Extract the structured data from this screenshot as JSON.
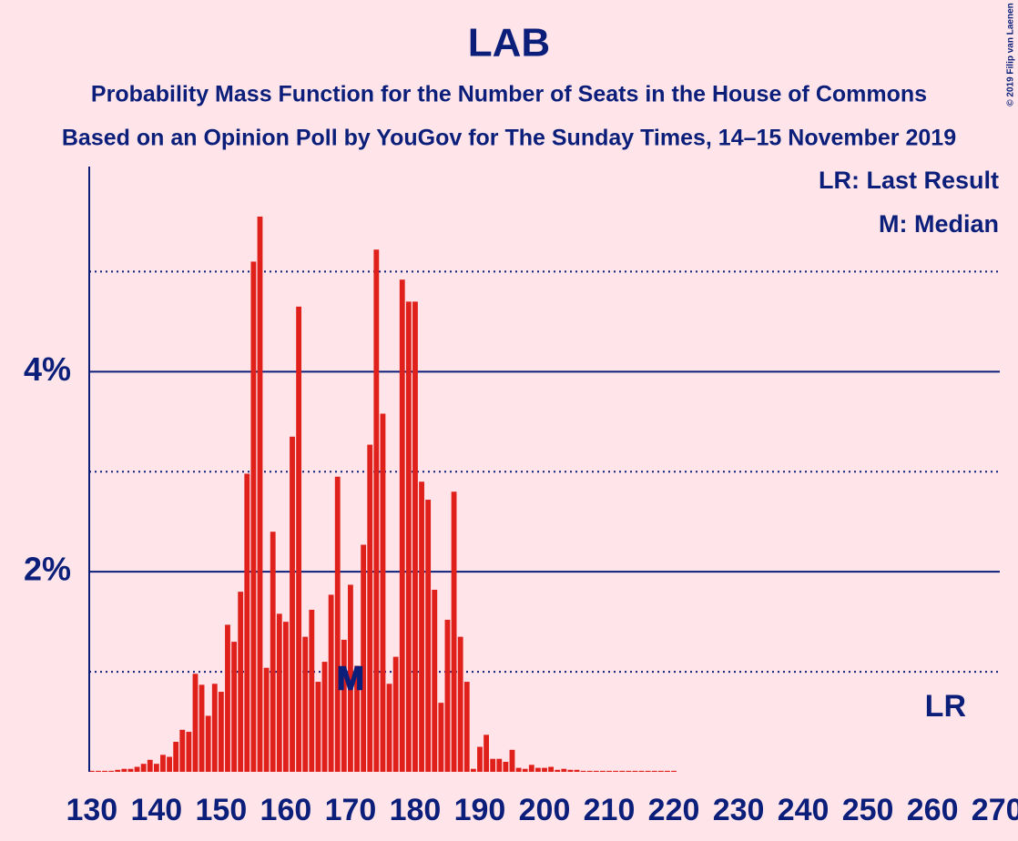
{
  "chart_data": {
    "type": "bar",
    "title": "LAB",
    "subtitle": "Probability Mass Function for the Number of Seats in the House of Commons",
    "subtitle2": "Based on an Opinion Poll by YouGov for The Sunday Times, 14–15 November 2019",
    "copyright": "© 2019 Filip van Laenen",
    "legend": [
      "LR: Last Result",
      "M: Median"
    ],
    "median": 170,
    "median_label": "M",
    "last_result": 262,
    "last_result_label": "LR",
    "color": "#e0201b",
    "x": [
      130,
      131,
      132,
      133,
      134,
      135,
      136,
      137,
      138,
      139,
      140,
      141,
      142,
      143,
      144,
      145,
      146,
      147,
      148,
      149,
      150,
      151,
      152,
      153,
      154,
      155,
      156,
      157,
      158,
      159,
      160,
      161,
      162,
      163,
      164,
      165,
      166,
      167,
      168,
      169,
      170,
      171,
      172,
      173,
      174,
      175,
      176,
      177,
      178,
      179,
      180,
      181,
      182,
      183,
      184,
      185,
      186,
      187,
      188,
      189,
      190,
      191,
      192,
      193,
      194,
      195,
      196,
      197,
      198,
      199,
      200,
      201,
      202,
      203,
      204,
      205,
      206,
      207,
      208,
      209,
      210,
      211,
      212,
      213,
      214,
      215,
      216,
      217,
      218,
      219,
      220,
      221,
      222,
      223,
      224,
      225,
      226,
      227,
      228,
      229,
      230,
      231,
      232,
      233,
      234,
      235,
      236,
      237,
      238,
      239,
      240,
      241,
      242,
      243,
      244,
      245,
      246,
      247,
      248,
      249,
      250,
      251,
      252,
      253,
      254,
      255,
      256,
      257,
      258,
      259,
      260,
      261,
      262,
      263,
      264,
      265,
      266,
      267,
      268,
      269,
      270
    ],
    "values": [
      0.01,
      0.01,
      0.01,
      0.01,
      0.02,
      0.03,
      0.03,
      0.05,
      0.08,
      0.12,
      0.08,
      0.17,
      0.15,
      0.3,
      0.42,
      0.4,
      0.98,
      0.87,
      0.56,
      0.88,
      0.8,
      1.47,
      1.3,
      1.8,
      2.98,
      5.1,
      5.55,
      1.04,
      2.4,
      1.58,
      1.5,
      3.35,
      4.65,
      1.35,
      1.62,
      0.9,
      1.1,
      1.77,
      2.95,
      1.32,
      1.87,
      1.06,
      2.27,
      3.27,
      5.22,
      3.58,
      0.88,
      1.15,
      4.92,
      4.7,
      4.7,
      2.9,
      2.72,
      1.82,
      0.69,
      1.52,
      2.8,
      1.35,
      0.9,
      0.03,
      0.25,
      0.37,
      0.13,
      0.13,
      0.1,
      0.22,
      0.04,
      0.03,
      0.07,
      0.04,
      0.04,
      0.05,
      0.02,
      0.03,
      0.02,
      0.02,
      0.01,
      0.01,
      0.01,
      0.01,
      0.01,
      0.01,
      0.01,
      0.01,
      0.01,
      0.01,
      0.01,
      0.01,
      0.01,
      0.01,
      0.01,
      0,
      0,
      0,
      0,
      0,
      0,
      0,
      0,
      0,
      0,
      0,
      0,
      0,
      0,
      0,
      0,
      0,
      0,
      0,
      0,
      0,
      0,
      0,
      0,
      0,
      0,
      0,
      0,
      0,
      0,
      0,
      0,
      0,
      0,
      0,
      0,
      0,
      0,
      0,
      0,
      0,
      0,
      0,
      0,
      0,
      0,
      0,
      0,
      0,
      0
    ],
    "xlim": [
      129.6,
      270.4
    ],
    "xticks": [
      130,
      140,
      150,
      160,
      170,
      180,
      190,
      200,
      210,
      220,
      230,
      240,
      250,
      260,
      270
    ],
    "ylim": [
      0,
      6.05
    ],
    "yticks": [
      {
        "value": 2,
        "label": "2%"
      },
      {
        "value": 4,
        "label": "4%"
      }
    ],
    "minor_yticks": [
      1,
      3,
      5
    ],
    "grid": true
  }
}
